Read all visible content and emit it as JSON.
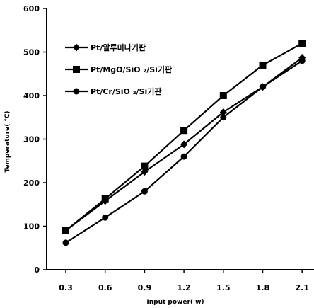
{
  "chart_data": {
    "type": "line",
    "title": "",
    "xlabel": "Input power( w)",
    "ylabel": "Temperature( ℃)",
    "x": [
      0.3,
      0.6,
      0.9,
      1.2,
      1.5,
      1.8,
      2.1
    ],
    "x_tick_labels": [
      "0.3",
      "0.6",
      "0.9",
      "1.2",
      "1.5",
      "1.8",
      "2.1"
    ],
    "ylim": [
      0,
      600
    ],
    "y_ticks": [
      0,
      100,
      200,
      300,
      400,
      500,
      600
    ],
    "grid": false,
    "legend_position": "top-left",
    "series": [
      {
        "name": "Pt/알루미나기판",
        "marker": "diamond",
        "color": "#000000",
        "values": [
          90,
          158,
          225,
          288,
          362,
          420,
          487
        ]
      },
      {
        "name": "Pt/MgO/SiO ₂/Si기판",
        "marker": "square",
        "color": "#000000",
        "values": [
          90,
          163,
          238,
          320,
          400,
          470,
          520
        ]
      },
      {
        "name": "Pt/Cr/SiO ₂/Si기판",
        "marker": "circle",
        "color": "#000000",
        "values": [
          62,
          120,
          180,
          260,
          350,
          420,
          480
        ]
      }
    ]
  }
}
